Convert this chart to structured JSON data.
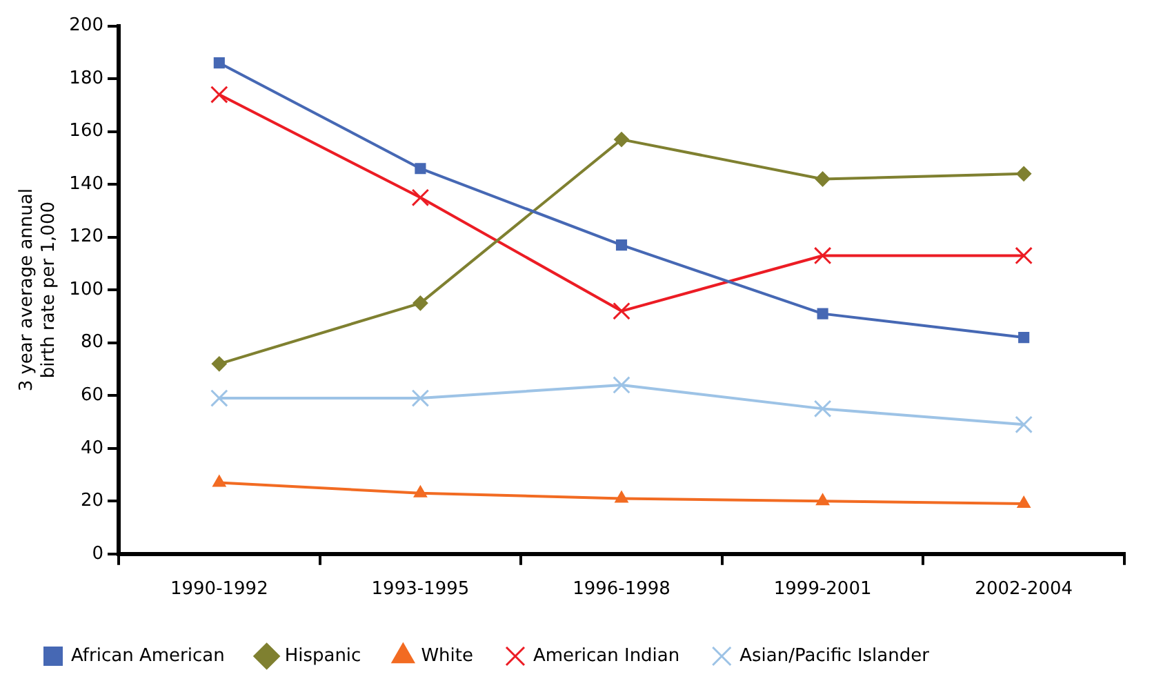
{
  "chart_data": {
    "type": "line",
    "ylabel": "3 year average annual birth rate per 1,000",
    "categories": [
      "1990-1992",
      "1993-1995",
      "1996-1998",
      "1999-2001",
      "2002-2004"
    ],
    "ylim": [
      0,
      200
    ],
    "yticks": [
      0,
      20,
      40,
      60,
      80,
      100,
      120,
      140,
      160,
      180,
      200
    ],
    "grid": false,
    "legend": "bottom",
    "line_style": "solid",
    "series": [
      {
        "name": "African American",
        "color": "#4668b4",
        "marker": "square",
        "values": [
          186,
          146,
          117,
          91,
          82
        ]
      },
      {
        "name": "Hispanic",
        "color": "#7f8030",
        "marker": "diamond",
        "values": [
          72,
          95,
          157,
          142,
          144
        ]
      },
      {
        "name": "White",
        "color": "#f26b22",
        "marker": "triangle",
        "values": [
          27,
          23,
          21,
          20,
          19
        ]
      },
      {
        "name": "American Indian",
        "color": "#ec1c24",
        "marker": "cross",
        "values": [
          174,
          135,
          92,
          113,
          113
        ]
      },
      {
        "name": "Asian/Pacific Islander",
        "color": "#9dc3e6",
        "marker": "cross",
        "values": [
          59,
          59,
          64,
          55,
          49
        ]
      }
    ]
  }
}
